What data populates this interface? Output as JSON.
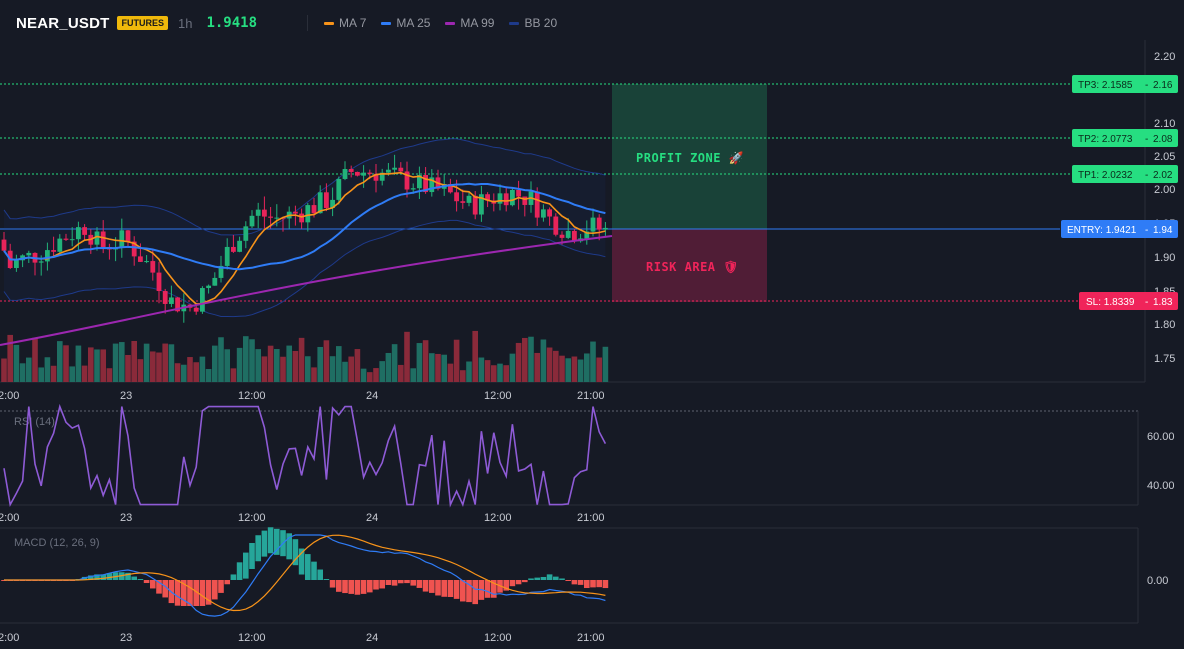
{
  "header": {
    "symbol": "NEAR_USDT",
    "badge": "FUTURES",
    "timeframe": "1h",
    "last_price": "1.9418"
  },
  "indicators": [
    {
      "label": "MA 7",
      "color": "#f7931a"
    },
    {
      "label": "MA 25",
      "color": "#2f7cf6"
    },
    {
      "label": "MA 99",
      "color": "#9c27b0"
    },
    {
      "label": "BB 20",
      "color": "#1e3a8a"
    }
  ],
  "colors": {
    "up": "#22b37a",
    "down": "#e8245a",
    "vol_up": "#1f6e63",
    "vol_down": "#8a2a3a",
    "tp": "#26de81",
    "entry": "#2f7cf6",
    "sl": "#f0245a",
    "macd_hist_pos": "#26a69a",
    "macd_hist_neg": "#ef5350"
  },
  "price_axis": {
    "ticks": [
      "2.20",
      "2.10",
      "2.05",
      "2.00",
      "1.95",
      "1.90",
      "1.85",
      "1.80",
      "1.75"
    ]
  },
  "time_axis": {
    "labels": [
      "2:00",
      "23",
      "12:00",
      "24",
      "12:00",
      "21:00"
    ]
  },
  "levels": {
    "tp3": {
      "label": "TP3: 2.1585",
      "short": "2.16",
      "value": 2.1585
    },
    "tp2": {
      "label": "TP2: 2.0773",
      "short": "2.08",
      "value": 2.0773
    },
    "tp1": {
      "label": "TP1: 2.0232",
      "short": "2.02",
      "value": 2.0232
    },
    "entry": {
      "label": "ENTRY: 1.9421",
      "short": "1.94",
      "value": 1.9421
    },
    "sl": {
      "label": "SL: 1.8339",
      "short": "1.83",
      "value": 1.8339
    }
  },
  "zones": {
    "profit": "PROFIT ZONE 🚀",
    "risk": "RISK AREA 🛡"
  },
  "rsi": {
    "label": "RSI (14)",
    "ticks": [
      "60.00",
      "40.00"
    ]
  },
  "macd": {
    "label": "MACD (12, 26, 9)",
    "ticks": [
      "0.00"
    ]
  }
}
